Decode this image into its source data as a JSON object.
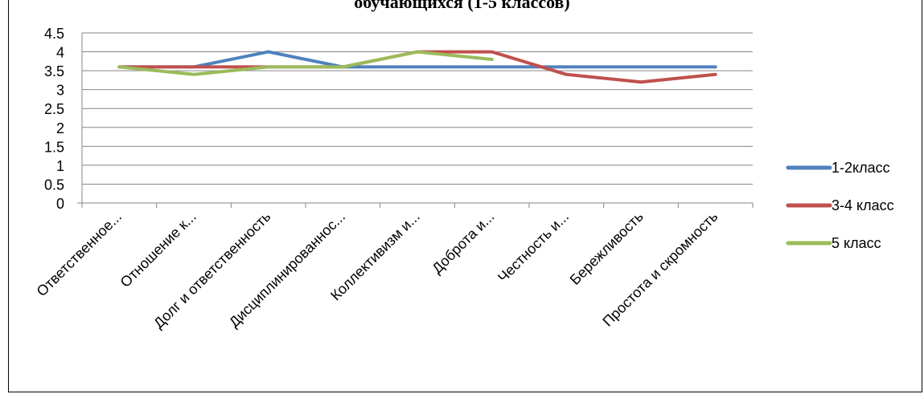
{
  "chart_data": {
    "type": "line",
    "title": "обучающихся (1-5 классов)",
    "categories": [
      "Ответственное...",
      "Отношение к...",
      "Долг и ответственность",
      "Дисциплинированнос...",
      "Коллективизм и...",
      "Доброта и...",
      "Честность и...",
      "Бережливость",
      "Простота и скромность"
    ],
    "ylim": [
      0,
      4.5
    ],
    "yticks": [
      "0",
      "0.5",
      "1",
      "1.5",
      "2",
      "2.5",
      "3",
      "3.5",
      "4",
      "4.5"
    ],
    "grid": true,
    "legend_position": "right",
    "series": [
      {
        "name": "1-2класс",
        "color": "#4f81bd",
        "values": [
          3.6,
          3.6,
          4.0,
          3.6,
          3.6,
          3.6,
          3.6,
          3.6,
          3.6
        ]
      },
      {
        "name": "3-4 класс",
        "color": "#c0504d",
        "values": [
          3.6,
          3.6,
          3.6,
          3.6,
          4.0,
          4.0,
          3.4,
          3.2,
          3.4
        ]
      },
      {
        "name": "5 класс",
        "color": "#9bbb59",
        "values": [
          3.6,
          3.4,
          3.6,
          3.6,
          4.0,
          3.8,
          null,
          null,
          null
        ]
      }
    ]
  }
}
